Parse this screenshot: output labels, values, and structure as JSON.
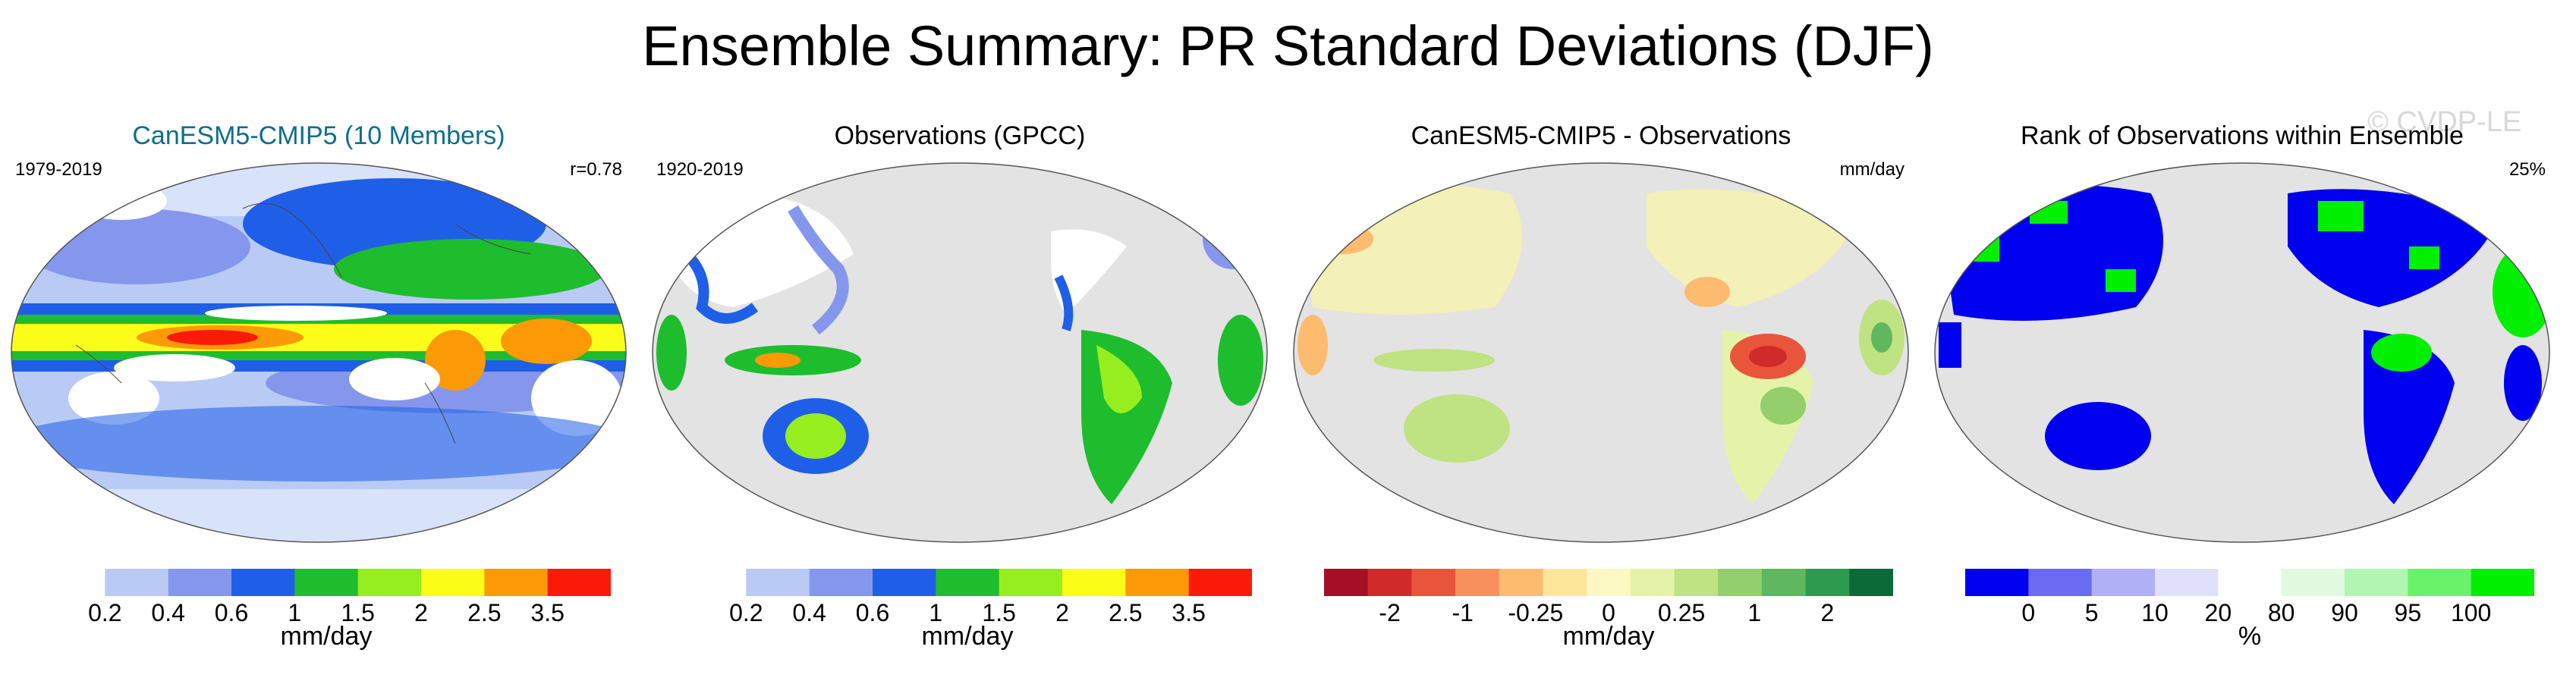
{
  "title": "Ensemble Summary: PR Standard Deviations (DJF)",
  "watermark": "© CVDP-LE",
  "panels": [
    {
      "title": "CanESM5-CMIP5 (10 Members)",
      "title_color": "#0e6e8c",
      "left_label": "1979-2019",
      "right_label": "r=0.78",
      "colorbar": {
        "colors": [
          "#ffffff",
          "#b9cbf5",
          "#8597ec",
          "#1f5fe8",
          "#1ebd2e",
          "#97ee1e",
          "#fcfc19",
          "#fb9a06",
          "#fb1a08"
        ],
        "ticks": [
          "0.2",
          "0.4",
          "0.6",
          "1",
          "1.5",
          "2",
          "2.5",
          "3.5"
        ],
        "units": "mm/day"
      }
    },
    {
      "title": "Observations (GPCC)",
      "title_color": "#000000",
      "left_label": "1920-2019",
      "right_label": "",
      "colorbar": {
        "colors": [
          "#ffffff",
          "#b9cbf5",
          "#8597ec",
          "#1f5fe8",
          "#1ebd2e",
          "#97ee1e",
          "#fcfc19",
          "#fb9a06",
          "#fb1a08"
        ],
        "ticks": [
          "0.2",
          "0.4",
          "0.6",
          "1",
          "1.5",
          "2",
          "2.5",
          "3.5"
        ],
        "units": "mm/day"
      }
    },
    {
      "title": "CanESM5-CMIP5 - Observations",
      "title_color": "#000000",
      "left_label": "",
      "right_label": "mm/day",
      "colorbar": {
        "colors": [
          "#a50f26",
          "#cf2b2a",
          "#e8553a",
          "#f7905a",
          "#fdbb70",
          "#fde69a",
          "#fbf8c4",
          "#e5f3a8",
          "#bfe282",
          "#93cf6c",
          "#5fb760",
          "#2e9a4f",
          "#0a6b38"
        ],
        "ticks": [
          "-2",
          "-1",
          "-0.25",
          "0",
          "0.25",
          "1",
          "2"
        ],
        "units": "mm/day"
      }
    },
    {
      "title": "Rank of Observations within Ensemble",
      "title_color": "#000000",
      "left_label": "",
      "right_label": "25%",
      "colorbar": {
        "colors": [
          "#0000f0",
          "#6b6bf2",
          "#b0b0f6",
          "#e0e0fb",
          "#ffffff",
          "#e0fbe0",
          "#b0f6b0",
          "#6bf26b",
          "#00f000"
        ],
        "ticks": [
          "0",
          "5",
          "10",
          "20",
          "80",
          "90",
          "95",
          "100"
        ],
        "units": "%"
      }
    }
  ]
}
